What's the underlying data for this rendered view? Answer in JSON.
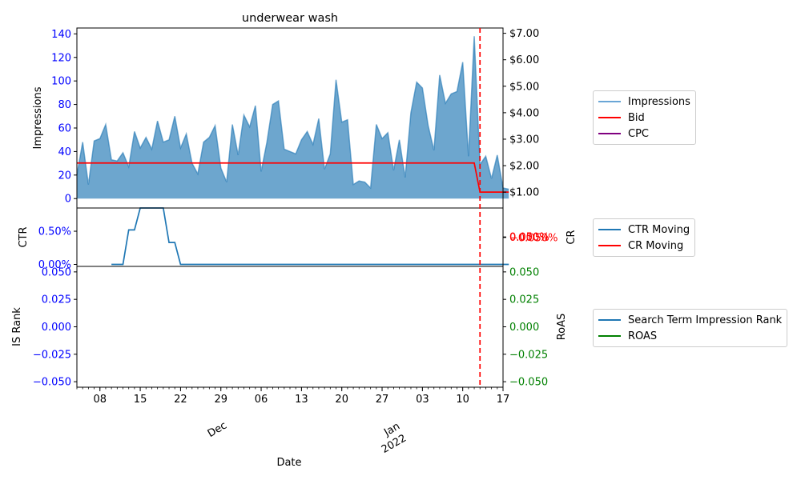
{
  "chart_data": {
    "type": "line",
    "title": "underwear wash",
    "xlabel": "Date",
    "x_ticks": {
      "days": [
        "08",
        "15",
        "22",
        "29",
        "06",
        "13",
        "20",
        "27",
        "03",
        "10",
        "17"
      ],
      "months": [
        [
          "Dec",
          ""
        ],
        [
          "Jan",
          "2022"
        ]
      ]
    },
    "x_range": [
      "2021-11-04",
      "2022-01-17"
    ],
    "marker_date": "2022-01-13",
    "colors": {
      "impressions": "#1f77b4",
      "bid": "#ff0000",
      "cpc": "#800080",
      "ctr": "#1f77b4",
      "cr": "#ff0000",
      "is_rank": "#1f77b4",
      "roas": "#008000",
      "left_tick": "#0000ff",
      "cr_tick": "#ff0000",
      "roas_tick": "#008000"
    },
    "panels": [
      {
        "ylabel": "Impressions",
        "ylabel_right": "",
        "ylim": [
          -8,
          145
        ],
        "yticks": [
          "0",
          "20",
          "40",
          "60",
          "80",
          "100",
          "120",
          "140"
        ],
        "ylim_right": [
          0.4,
          7.2
        ],
        "yticks_right": [
          "$1.00",
          "$2.00",
          "$3.00",
          "$4.00",
          "$5.00",
          "$6.00",
          "$7.00"
        ],
        "series": [
          {
            "name": "Impressions",
            "kind": "area",
            "values": [
              20,
              48,
              12,
              49,
              51,
              63,
              33,
              32,
              39,
              27,
              57,
              43,
              52,
              42,
              66,
              48,
              50,
              70,
              43,
              55,
              30,
              21,
              48,
              52,
              62,
              26,
              14,
              63,
              37,
              71,
              61,
              79,
              23,
              48,
              80,
              83,
              42,
              40,
              38,
              50,
              57,
              46,
              68,
              25,
              38,
              101,
              65,
              67,
              12,
              15,
              14,
              9,
              63,
              51,
              56,
              24,
              50,
              18,
              73,
              99,
              94,
              62,
              41,
              105,
              81,
              89,
              91,
              116,
              36,
              138,
              29,
              36,
              17,
              37,
              9,
              8
            ]
          },
          {
            "name": "Bid",
            "kind": "line",
            "axis": "right",
            "values": [
              2.1,
              2.1,
              2.1,
              2.1,
              2.1,
              2.1,
              2.1,
              2.1,
              2.1,
              2.1,
              2.1,
              2.1,
              2.1,
              2.1,
              2.1,
              2.1,
              2.1,
              2.1,
              2.1,
              2.1,
              2.1,
              2.1,
              2.1,
              2.1,
              2.1,
              2.1,
              2.1,
              2.1,
              2.1,
              2.1,
              2.1,
              2.1,
              2.1,
              2.1,
              2.1,
              2.1,
              2.1,
              2.1,
              2.1,
              2.1,
              2.1,
              2.1,
              2.1,
              2.1,
              2.1,
              2.1,
              2.1,
              2.1,
              2.1,
              2.1,
              2.1,
              2.1,
              2.1,
              2.1,
              2.1,
              2.1,
              2.1,
              2.1,
              2.1,
              2.1,
              2.1,
              2.1,
              2.1,
              2.1,
              2.1,
              2.1,
              2.1,
              2.1,
              2.1,
              2.1,
              1.0,
              1.0,
              1.0,
              1.0,
              1.0,
              1.0
            ]
          },
          {
            "name": "CPC",
            "kind": "line",
            "axis": "right",
            "values": []
          }
        ]
      },
      {
        "ylabel": "CTR",
        "ylabel_right": "CR",
        "ylim": [
          -0.0003,
          0.0085
        ],
        "yticks": [
          "0.00%",
          "0.50%"
        ],
        "ylim_right": [
          -0.055,
          0.055
        ],
        "yticks_right": [
          "−0.050%",
          "0.000%",
          "0.050%"
        ],
        "series": [
          {
            "name": "CTR Moving",
            "kind": "line",
            "start_index": 6,
            "values": [
              0,
              0,
              0,
              0.0052,
              0.0052,
              0.0085,
              0.0085,
              0.0085,
              0.0085,
              0.0085,
              0.0033,
              0.0033,
              0,
              0,
              0,
              0,
              0,
              0,
              0,
              0,
              0,
              0,
              0,
              0,
              0,
              0,
              0,
              0,
              0,
              0,
              0,
              0,
              0,
              0,
              0,
              0,
              0,
              0,
              0,
              0,
              0,
              0,
              0,
              0,
              0,
              0,
              0,
              0,
              0,
              0,
              0,
              0,
              0,
              0,
              0,
              0,
              0,
              0,
              0,
              0,
              0,
              0,
              0,
              0,
              0,
              0,
              0,
              0,
              0,
              0
            ]
          },
          {
            "name": "CR Moving",
            "kind": "line",
            "axis": "right",
            "values": []
          }
        ]
      },
      {
        "ylabel": "IS Rank",
        "ylabel_right": "RoAS",
        "ylim": [
          -0.055,
          0.055
        ],
        "yticks": [
          "−0.050",
          "−0.025",
          "0.000",
          "0.025",
          "0.050"
        ],
        "ylim_right": [
          -0.055,
          0.055
        ],
        "yticks_right": [
          "−0.050",
          "−0.025",
          "0.000",
          "0.025",
          "0.050"
        ],
        "series": [
          {
            "name": "Search Term Impression Rank",
            "kind": "line",
            "values": []
          },
          {
            "name": "ROAS",
            "kind": "line",
            "axis": "right",
            "values": []
          }
        ]
      }
    ]
  }
}
